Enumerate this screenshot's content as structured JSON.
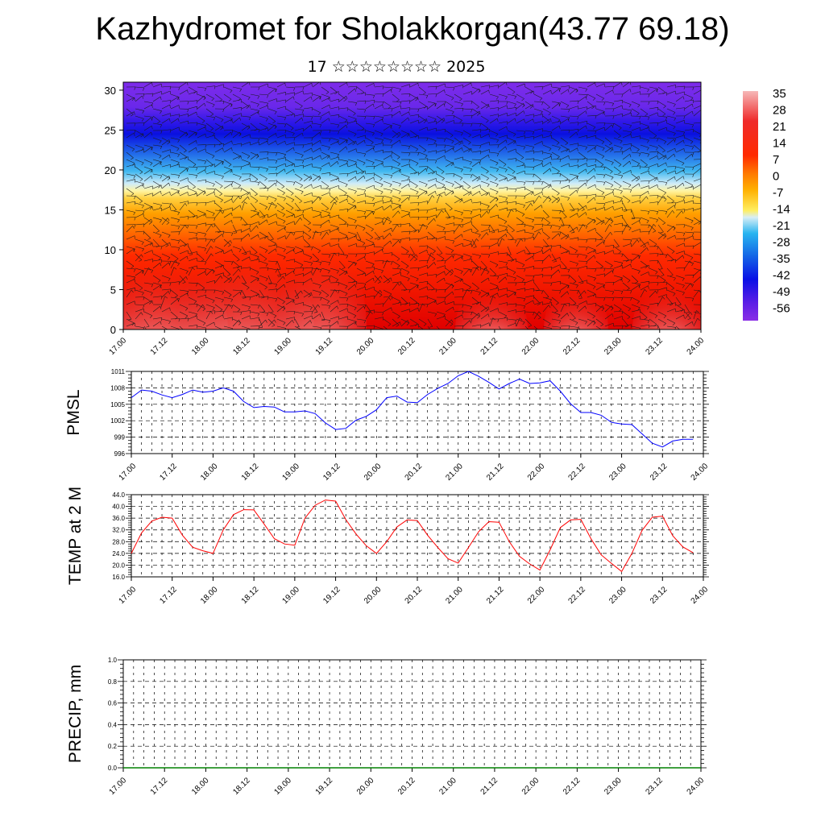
{
  "title": "Kazhydromet for Sholakkorgan(43.77 69.18)",
  "subtitle": "17 ☆☆☆☆☆☆☆☆ 2025",
  "chart_data": [
    {
      "type": "heatmap",
      "panel": "cross-section",
      "xlabel": "",
      "ylabel": "",
      "x_ticks": [
        "17.00",
        "17.12",
        "18.00",
        "18.12",
        "19.00",
        "19.12",
        "20.00",
        "20.12",
        "21.00",
        "21.12",
        "22.00",
        "22.12",
        "23.00",
        "23.12",
        "24.00"
      ],
      "y_ticks": [
        0,
        5,
        10,
        15,
        20,
        25,
        30
      ],
      "ylim": [
        0,
        31
      ],
      "colorbar_labels": [
        "35",
        "28",
        "21",
        "14",
        "7",
        "0",
        "-7",
        "-14",
        "-21",
        "-28",
        "-35",
        "-42",
        "-49",
        "-56"
      ],
      "colorbar_colors": [
        "#f6b8b8",
        "#ef1c1c",
        "#e60000",
        "#ff3000",
        "#ff6a00",
        "#ff9a00",
        "#ffc400",
        "#ffee60",
        "#c8e6f0",
        "#28b4f0",
        "#1464e6",
        "#0a1ee6",
        "#5a1ee6",
        "#8a2ee6"
      ],
      "overlay": "wind barbs"
    },
    {
      "type": "line",
      "panel": "pmsl",
      "ylabel": "PMSL",
      "x_ticks": [
        "17.00",
        "17.12",
        "18.00",
        "18.12",
        "19.00",
        "19.12",
        "20.00",
        "20.12",
        "21.00",
        "21.12",
        "22.00",
        "22.12",
        "23.00",
        "23.12",
        "24.00"
      ],
      "y_ticks": [
        "996",
        "999",
        "1002",
        "1005",
        "1008",
        "1011"
      ],
      "ylim": [
        996,
        1011
      ],
      "series": [
        {
          "color": "#0000ff",
          "x": [
            0,
            3,
            6,
            9,
            12,
            15,
            18,
            21,
            24,
            27,
            30,
            33,
            36,
            39,
            42,
            45,
            48,
            51,
            54,
            57,
            60,
            63,
            66,
            69,
            72,
            75,
            78,
            81,
            84,
            87,
            90,
            93,
            96,
            99,
            102,
            105,
            108,
            111,
            114,
            117,
            120,
            123,
            126,
            129,
            132,
            135,
            138,
            141,
            144,
            147,
            150,
            153,
            156,
            159,
            162,
            165
          ],
          "values": [
            1006.2,
            1007.6,
            1007.4,
            1006.7,
            1006.2,
            1006.8,
            1007.6,
            1007.2,
            1007.4,
            1008.0,
            1007.4,
            1005.5,
            1004.4,
            1004.6,
            1004.5,
            1003.6,
            1003.6,
            1003.8,
            1003.3,
            1001.6,
            1000.4,
            1000.6,
            1002.1,
            1002.8,
            1004.0,
            1006.2,
            1006.5,
            1005.4,
            1005.3,
            1006.8,
            1007.9,
            1008.8,
            1010.2,
            1011.0,
            1010.1,
            1009.0,
            1007.8,
            1008.8,
            1009.6,
            1008.8,
            1008.9,
            1009.3,
            1007.4,
            1005.1,
            1003.5,
            1003.5,
            1003.0,
            1001.7,
            1001.4,
            1001.3,
            999.6,
            997.9,
            997.2,
            998.3,
            998.6,
            998.6
          ]
        }
      ]
    },
    {
      "type": "line",
      "panel": "temp2m",
      "ylabel": "TEMP at 2 M",
      "x_ticks": [
        "17.00",
        "17.12",
        "18.00",
        "18.12",
        "19.00",
        "19.12",
        "20.00",
        "20.12",
        "21.00",
        "21.12",
        "22.00",
        "22.12",
        "23.00",
        "23.12",
        "24.00"
      ],
      "y_ticks": [
        "16.0",
        "20.0",
        "24.0",
        "28.0",
        "32.0",
        "36.0",
        "40.0",
        "44.0"
      ],
      "ylim": [
        16,
        44
      ],
      "series": [
        {
          "color": "#ff0000",
          "x": [
            0,
            3,
            6,
            9,
            12,
            15,
            18,
            21,
            24,
            27,
            30,
            33,
            36,
            39,
            42,
            45,
            48,
            51,
            54,
            57,
            60,
            63,
            66,
            69,
            72,
            75,
            78,
            81,
            84,
            87,
            90,
            93,
            96,
            99,
            102,
            105,
            108,
            111,
            114,
            117,
            120,
            123,
            126,
            129,
            132,
            135,
            138,
            141,
            144,
            147,
            150,
            153,
            156,
            159,
            162,
            165
          ],
          "values": [
            24.0,
            31.0,
            35.0,
            36.3,
            36.0,
            30.2,
            26.1,
            24.9,
            24.0,
            32.0,
            37.2,
            38.9,
            38.8,
            34.0,
            29.0,
            27.2,
            26.8,
            36.0,
            40.4,
            42.2,
            41.8,
            35.5,
            30.6,
            26.6,
            24.0,
            28.0,
            33.0,
            35.4,
            35.2,
            30.2,
            26.0,
            22.2,
            20.7,
            26.0,
            31.4,
            34.8,
            34.6,
            28.0,
            23.0,
            20.4,
            18.3,
            25.2,
            32.8,
            35.4,
            35.6,
            29.0,
            23.5,
            20.6,
            17.8,
            24.0,
            31.8,
            36.3,
            36.7,
            30.0,
            26.2,
            24.2
          ]
        }
      ]
    },
    {
      "type": "line",
      "panel": "precip",
      "ylabel": "PRECIP, mm",
      "x_ticks": [
        "17.00",
        "17.12",
        "18.00",
        "18.12",
        "19.00",
        "19.12",
        "20.00",
        "20.12",
        "21.00",
        "21.12",
        "22.00",
        "22.12",
        "23.00",
        "23.12",
        "24.00"
      ],
      "y_ticks": [
        "0.0",
        "0.2",
        "0.4",
        "0.6",
        "0.8",
        "1.0"
      ],
      "ylim": [
        0,
        1
      ],
      "series": [
        {
          "color": "#008000",
          "x": [
            0,
            168
          ],
          "values": [
            0,
            0
          ]
        }
      ]
    }
  ]
}
